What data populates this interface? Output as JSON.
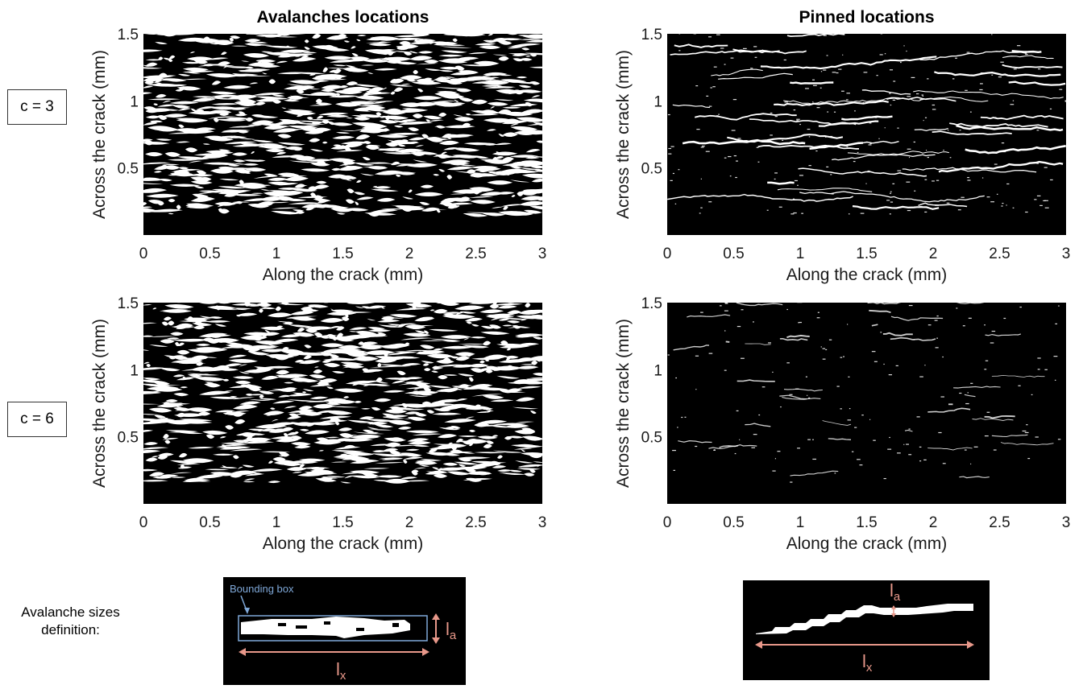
{
  "titles": {
    "left": "Avalanches locations",
    "right": "Pinned locations"
  },
  "row_labels": [
    "c = 3",
    "c = 6"
  ],
  "footer": {
    "label_line1": "Avalanche sizes",
    "label_line2": "definition:",
    "bbox_label": "Bounding box",
    "la_label": "l",
    "la_sub": "a",
    "lx_label": "l",
    "lx_sub": "x"
  },
  "colors": {
    "plot_bg": "#000000",
    "feature": "#ffffff",
    "annotation": "#e8988a",
    "bbox": "#7fa8d8"
  },
  "chart_data": [
    {
      "type": "heatmap",
      "title": "Avalanches locations",
      "row": "c = 3",
      "xlabel": "Along the crack (mm)",
      "ylabel": "Across the crack (mm)",
      "xlim": [
        0,
        3
      ],
      "ylim": [
        0,
        1.5
      ],
      "xticks": [
        0,
        0.5,
        1,
        1.5,
        2,
        2.5,
        3
      ],
      "yticks": [
        0.5,
        1,
        1.5
      ],
      "density": "high",
      "seed": 11
    },
    {
      "type": "heatmap",
      "title": "Pinned locations",
      "row": "c = 3",
      "xlabel": "Along the crack (mm)",
      "ylabel": "Across the crack (mm)",
      "xlim": [
        0,
        3
      ],
      "ylim": [
        0,
        1.5
      ],
      "xticks": [
        0,
        0.5,
        1,
        1.5,
        2,
        2.5,
        3
      ],
      "yticks": [
        0.5,
        1,
        1.5
      ],
      "density": "medium",
      "seed": 23
    },
    {
      "type": "heatmap",
      "title": "",
      "row": "c = 6",
      "xlabel": "Along the crack (mm)",
      "ylabel": "Across the crack (mm)",
      "xlim": [
        0,
        3
      ],
      "ylim": [
        0,
        1.5
      ],
      "xticks": [
        0,
        0.5,
        1,
        1.5,
        2,
        2.5,
        3
      ],
      "yticks": [
        0.5,
        1,
        1.5
      ],
      "density": "high",
      "seed": 37
    },
    {
      "type": "heatmap",
      "title": "",
      "row": "c = 6",
      "xlabel": "Along the crack (mm)",
      "ylabel": "Across the crack (mm)",
      "xlim": [
        0,
        3
      ],
      "ylim": [
        0,
        1.5
      ],
      "xticks": [
        0,
        0.5,
        1,
        1.5,
        2,
        2.5,
        3
      ],
      "yticks": [
        0.5,
        1,
        1.5
      ],
      "density": "low",
      "seed": 51
    }
  ]
}
